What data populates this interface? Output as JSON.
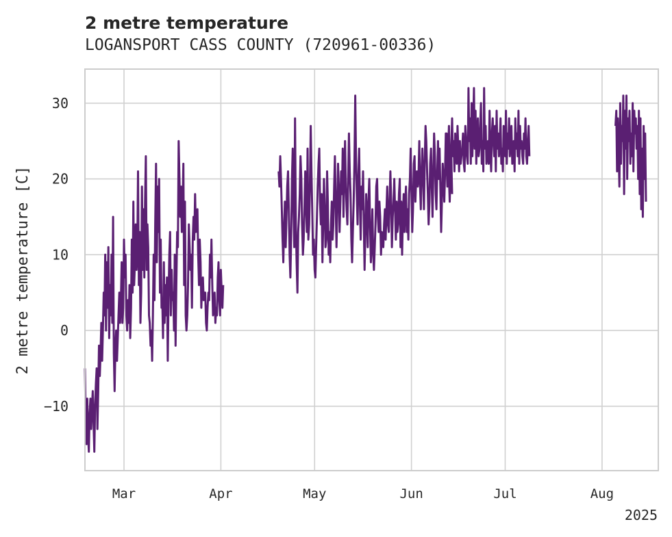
{
  "chart_data": {
    "type": "line",
    "title": "2 metre temperature",
    "subtitle": "LOGANSPORT CASS COUNTY (720961-00336)",
    "ylabel": "2 metre temperature [C]",
    "xlabel": "",
    "year_label": "2025",
    "ylim": [
      -18.5,
      34.5
    ],
    "xlim_days": [
      0,
      183.5
    ],
    "y_ticks": [
      -10,
      0,
      10,
      20,
      30
    ],
    "y_tick_labels": [
      "−10",
      "0",
      "10",
      "20",
      "30"
    ],
    "x_ticks": [
      {
        "day": 12.5,
        "label": "Mar"
      },
      {
        "day": 43.5,
        "label": "Apr"
      },
      {
        "day": 73.5,
        "label": "May"
      },
      {
        "day": 104.5,
        "label": "Jun"
      },
      {
        "day": 134.5,
        "label": "Jul"
      },
      {
        "day": 165.5,
        "label": "Aug"
      }
    ],
    "grid": true,
    "line_color": "#5a1f72",
    "series": [
      {
        "name": "2 metre temperature",
        "segments": [
          {
            "start_day": 0.0,
            "step_days": 0.25,
            "values": [
              -5,
              -12,
              -15,
              -9,
              -14,
              -16,
              -11,
              -9,
              -13,
              -10,
              -8,
              -12,
              -16,
              -10,
              -7,
              -5,
              -13,
              -8,
              -2,
              -6,
              -3,
              1,
              -4,
              0,
              5,
              2,
              10,
              0,
              9,
              3,
              11,
              -1,
              6,
              2,
              10,
              1,
              15,
              -3,
              -8,
              -2,
              0,
              -4,
              -1,
              2,
              5,
              1,
              4,
              9,
              1,
              3,
              12,
              7,
              10,
              2,
              0,
              4,
              1,
              6,
              -1,
              3,
              12,
              5,
              17,
              6,
              9,
              14,
              8,
              10,
              21,
              6,
              13,
              1,
              5,
              19,
              8,
              16,
              7,
              17,
              23,
              8,
              14,
              11,
              2,
              1,
              -2,
              0,
              -4,
              2,
              10,
              4,
              14,
              22,
              9,
              19,
              13,
              20,
              5,
              12,
              3,
              4,
              -1,
              9,
              1,
              6,
              2,
              7,
              -4,
              4,
              10,
              13,
              2,
              8,
              4,
              5,
              0,
              10,
              -2,
              6,
              13,
              11,
              25,
              20,
              15,
              19,
              13,
              16,
              22,
              6,
              17,
              2,
              0,
              2,
              6,
              14,
              11,
              8,
              10,
              3,
              12,
              15,
              12,
              18,
              13,
              15,
              16,
              10,
              6,
              12,
              9,
              3,
              6,
              7,
              4,
              5,
              5,
              1,
              0,
              3,
              5,
              4,
              10,
              7,
              12,
              6,
              2,
              3,
              5,
              1,
              3,
              2,
              7,
              9,
              4,
              2,
              8,
              5,
              3,
              6
            ]
          },
          {
            "start_day": 62.0,
            "step_days": 0.25,
            "values": [
              21,
              19,
              23,
              20,
              16,
              12,
              9,
              14,
              17,
              11,
              15,
              19,
              21,
              16,
              10,
              7,
              12,
              20,
              24,
              16,
              11,
              28,
              14,
              9,
              5,
              13,
              15,
              18,
              23,
              20,
              14,
              10,
              12,
              16,
              21,
              17,
              13,
              24,
              12,
              14,
              19,
              27,
              21,
              16,
              10,
              12,
              8,
              7,
              11,
              15,
              19,
              22,
              24,
              17,
              14,
              18,
              9,
              14,
              20,
              16,
              11,
              12,
              21,
              17,
              10,
              13,
              9,
              14,
              17,
              12,
              14,
              19,
              23,
              17,
              11,
              16,
              22,
              19,
              13,
              17,
              21,
              18,
              24,
              15,
              20,
              25,
              19,
              16,
              14,
              20,
              26,
              21,
              18,
              12,
              9,
              13,
              17,
              22,
              31,
              23,
              18,
              14,
              20,
              24,
              17,
              12,
              19,
              16,
              21,
              14,
              8,
              13,
              18,
              15,
              11,
              17,
              20,
              14,
              9,
              12,
              16,
              10,
              8,
              11,
              14,
              19,
              20,
              15,
              13,
              17,
              15,
              10,
              13,
              12,
              11,
              14,
              16,
              12,
              16,
              19,
              14,
              13,
              17,
              21,
              17,
              11,
              15,
              17,
              20,
              16,
              12,
              17,
              13,
              14,
              18,
              20,
              11,
              17,
              10,
              15,
              18,
              13,
              17,
              19,
              13,
              16,
              12,
              18,
              20,
              24,
              18,
              13,
              16,
              22,
              23,
              17,
              20,
              21,
              19,
              20,
              25,
              19,
              16,
              21,
              24,
              20,
              16,
              22,
              27,
              25,
              21,
              18,
              14,
              17,
              22,
              24,
              19,
              15,
              21,
              26,
              23,
              18,
              16,
              21,
              25,
              20,
              24,
              19,
              13,
              17,
              22,
              20,
              17,
              21,
              26,
              22,
              19,
              24,
              20,
              17,
              21,
              23,
              18
            ]
          },
          {
            "start_day": 115.5,
            "step_days": 0.25,
            "values": [
              22,
              26,
              21,
              24,
              27,
              22,
              20,
              24,
              28,
              23,
              25,
              21,
              26,
              23,
              22,
              27,
              24,
              21,
              25,
              22,
              23,
              24,
              26,
              22,
              21,
              27,
              25,
              23,
              22,
              32,
              25,
              28,
              22,
              30,
              23,
              27,
              32,
              24,
              29,
              22,
              26,
              28,
              23,
              24,
              27,
              30,
              22,
              25,
              21,
              32,
              24,
              27,
              22,
              23,
              25,
              22,
              29,
              24,
              21,
              26,
              28,
              25,
              23,
              27,
              21,
              29,
              24,
              26,
              23,
              25,
              28,
              22,
              24,
              21,
              27,
              25,
              23,
              29,
              22,
              26,
              24,
              28,
              23,
              25,
              27,
              22,
              24,
              25,
              21,
              28,
              24,
              26,
              23,
              29,
              22,
              27,
              24,
              25,
              23,
              22,
              26,
              24,
              28,
              23,
              22,
              25,
              27,
              23
            ]
          },
          {
            "start_day": 169.8,
            "step_days": 0.25,
            "values": [
              27,
              29,
              21,
              28,
              24,
              19,
              30,
              22,
              27,
              25,
              31,
              18,
              29,
              24,
              31,
              20,
              28,
              25,
              29,
              22,
              26,
              23,
              30,
              21,
              29,
              26,
              28,
              24,
              27,
              20,
              29,
              18,
              28,
              16,
              24,
              15,
              27,
              20,
              26,
              17
            ]
          }
        ]
      }
    ]
  }
}
